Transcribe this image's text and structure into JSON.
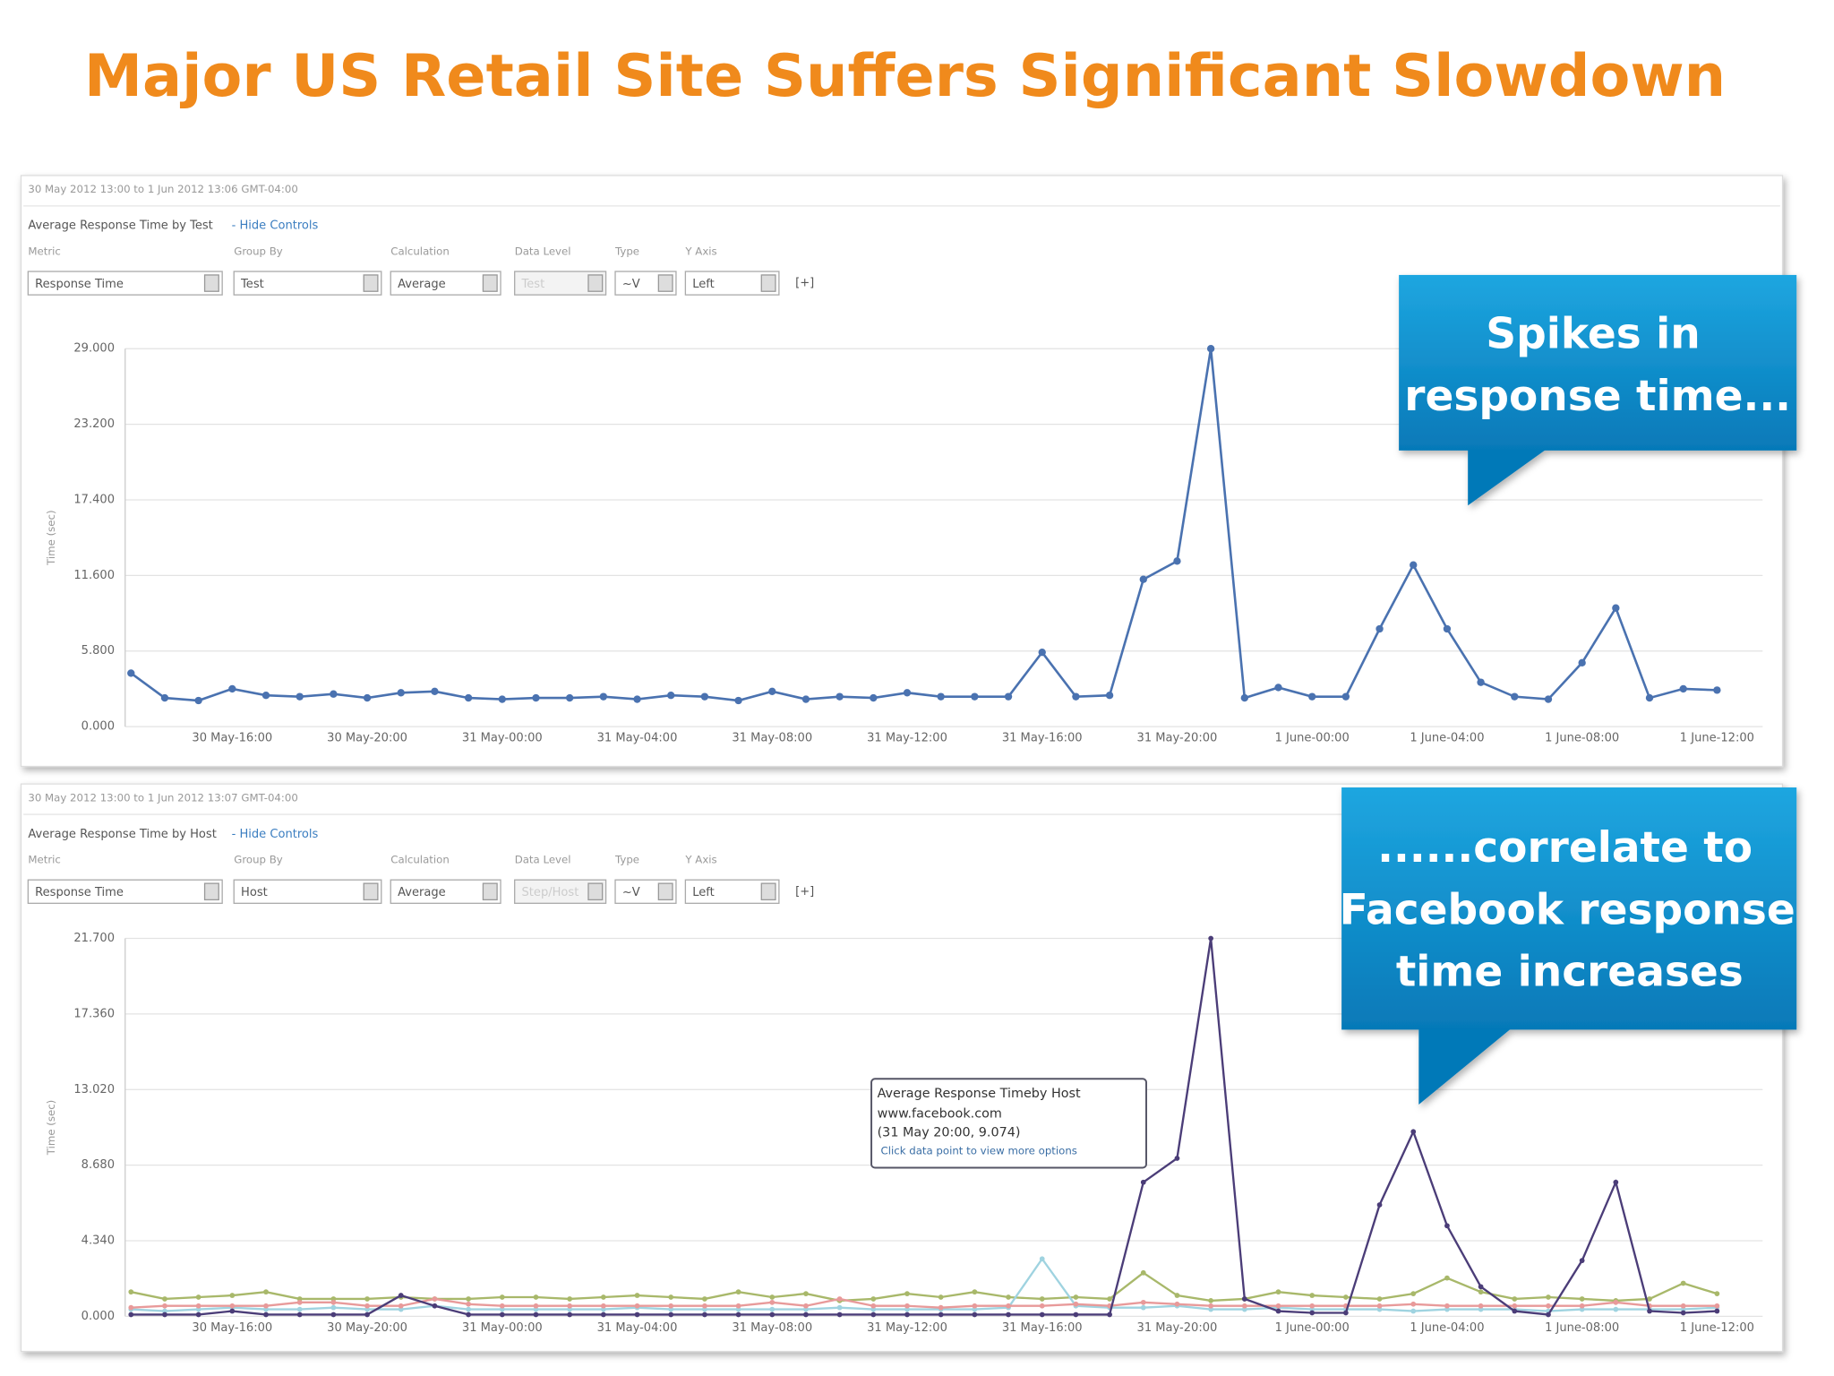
{
  "title": "Major US Retail Site Suffers Significant Slowdown",
  "panels": [
    {
      "header": "30 May 2012 13:00 to 1 Jun 2012 13:06 GMT-04:00",
      "heading": "Average Response Time by Test",
      "toggle": "- Hide Controls",
      "control_labels": [
        "Metric",
        "Group By",
        "Calculation",
        "Data Level",
        "Type",
        "Y Axis"
      ],
      "control_values": [
        "Response Time",
        "Test",
        "Average",
        "Test",
        "~V",
        "Left"
      ],
      "add": "[+]"
    },
    {
      "header": "30 May 2012 13:00 to 1 Jun 2012 13:07 GMT-04:00",
      "heading": "Average Response Time by Host",
      "toggle": "- Hide Controls",
      "control_labels": [
        "Metric",
        "Group By",
        "Calculation",
        "Data Level",
        "Type",
        "Y Axis"
      ],
      "control_values": [
        "Response Time",
        "Host",
        "Average",
        "Step/Host",
        "~V",
        "Left"
      ],
      "add": "[+]"
    }
  ],
  "callouts": [
    {
      "lines": [
        "Spikes in",
        "response time..."
      ]
    },
    {
      "lines": [
        "......correlate to",
        "Facebook response",
        "time increases"
      ]
    }
  ],
  "tooltip": {
    "lines": [
      "Average Response Timeby Host",
      "www.facebook.com",
      "(31 May 20:00, 9.074)",
      "Click data point to view more options"
    ]
  },
  "chart_data": [
    {
      "type": "line",
      "y_label": "Time (sec)",
      "categories": [
        null,
        null,
        null,
        "30 May-16:00",
        null,
        null,
        null,
        "30 May-20:00",
        null,
        null,
        null,
        "31 May-00:00",
        null,
        null,
        null,
        "31 May-04:00",
        null,
        null,
        null,
        "31 May-08:00",
        null,
        null,
        null,
        "31 May-12:00",
        null,
        null,
        null,
        "31 May-16:00",
        null,
        null,
        null,
        "31 May-20:00",
        null,
        null,
        null,
        "1 June-00:00",
        null,
        null,
        null,
        "1 June-04:00",
        null,
        null,
        null,
        "1 June-08:00",
        null,
        null,
        null,
        "1 June-12:00"
      ],
      "series": [
        {
          "color": "#4a72b0",
          "values": [
            4.1,
            2.2,
            2.0,
            2.9,
            2.4,
            2.3,
            2.5,
            2.2,
            2.6,
            2.7,
            2.2,
            2.1,
            2.2,
            2.2,
            2.3,
            2.1,
            2.4,
            2.3,
            2.0,
            2.7,
            2.1,
            2.3,
            2.2,
            2.6,
            2.3,
            2.3,
            2.3,
            5.7,
            2.3,
            2.4,
            11.3,
            12.7,
            29.0,
            2.2,
            3.0,
            2.3,
            2.3,
            7.5,
            12.4,
            7.5,
            3.4,
            2.3,
            2.1,
            4.9,
            9.1,
            2.2,
            2.9,
            2.8
          ]
        }
      ],
      "ylim": [
        0,
        29
      ],
      "yticks": [
        {
          "value": 0,
          "label": "0.000"
        },
        {
          "value": 5.8,
          "label": "5.800"
        },
        {
          "value": 11.6,
          "label": "11.600"
        },
        {
          "value": 17.4,
          "label": "17.400"
        },
        {
          "value": 23.2,
          "label": "23.200"
        },
        {
          "value": 29,
          "label": "29.000"
        }
      ],
      "grid": true
    },
    {
      "type": "line",
      "y_label": "Time (sec)",
      "categories": [
        null,
        null,
        null,
        "30 May-16:00",
        null,
        null,
        null,
        "30 May-20:00",
        null,
        null,
        null,
        "31 May-00:00",
        null,
        null,
        null,
        "31 May-04:00",
        null,
        null,
        null,
        "31 May-08:00",
        null,
        null,
        null,
        "31 May-12:00",
        null,
        null,
        null,
        "31 May-16:00",
        null,
        null,
        null,
        "31 May-20:00",
        null,
        null,
        null,
        "1 June-00:00",
        null,
        null,
        null,
        "1 June-04:00",
        null,
        null,
        null,
        "1 June-08:00",
        null,
        null,
        null,
        "1 June-12:00"
      ],
      "series": [
        {
          "color": "#a8b86a",
          "values": [
            1.4,
            1.0,
            1.1,
            1.2,
            1.4,
            1.0,
            1.0,
            1.0,
            1.1,
            1.0,
            1.0,
            1.1,
            1.1,
            1.0,
            1.1,
            1.2,
            1.1,
            1.0,
            1.4,
            1.1,
            1.3,
            0.9,
            1.0,
            1.3,
            1.1,
            1.4,
            1.1,
            1.0,
            1.1,
            1.0,
            2.5,
            1.2,
            0.9,
            1.0,
            1.4,
            1.2,
            1.1,
            1.0,
            1.3,
            2.2,
            1.4,
            1.0,
            1.1,
            1.0,
            0.9,
            1.0,
            1.9,
            1.3
          ]
        },
        {
          "color": "#9fd3e0",
          "values": [
            0.4,
            0.3,
            0.4,
            0.5,
            0.4,
            0.4,
            0.5,
            0.4,
            0.4,
            0.6,
            0.4,
            0.4,
            0.4,
            0.4,
            0.4,
            0.5,
            0.4,
            0.4,
            0.4,
            0.4,
            0.4,
            0.5,
            0.4,
            0.4,
            0.4,
            0.4,
            0.5,
            3.3,
            0.6,
            0.5,
            0.5,
            0.6,
            0.4,
            0.4,
            0.5,
            0.4,
            0.4,
            0.4,
            0.3,
            0.4,
            0.4,
            0.4,
            0.3,
            0.4,
            0.4,
            0.4,
            0.4,
            0.5
          ]
        },
        {
          "color": "#e89a9a",
          "values": [
            0.5,
            0.6,
            0.6,
            0.6,
            0.6,
            0.8,
            0.8,
            0.6,
            0.6,
            1.0,
            0.7,
            0.6,
            0.6,
            0.6,
            0.6,
            0.6,
            0.6,
            0.6,
            0.6,
            0.8,
            0.6,
            1.0,
            0.6,
            0.6,
            0.5,
            0.6,
            0.6,
            0.6,
            0.7,
            0.6,
            0.8,
            0.7,
            0.6,
            0.6,
            0.6,
            0.6,
            0.6,
            0.6,
            0.7,
            0.6,
            0.6,
            0.6,
            0.6,
            0.6,
            0.8,
            0.6,
            0.6,
            0.6
          ]
        },
        {
          "color": "#4b3d78",
          "values": [
            0.1,
            0.1,
            0.1,
            0.3,
            0.1,
            0.1,
            0.1,
            0.1,
            1.2,
            0.6,
            0.1,
            0.1,
            0.1,
            0.1,
            0.1,
            0.1,
            0.1,
            0.1,
            0.1,
            0.1,
            0.1,
            0.1,
            0.1,
            0.1,
            0.1,
            0.1,
            0.1,
            0.1,
            0.1,
            0.1,
            7.7,
            9.074,
            21.7,
            1.0,
            0.3,
            0.2,
            0.2,
            6.4,
            10.6,
            5.2,
            1.7,
            0.3,
            0.1,
            3.2,
            7.7,
            0.3,
            0.2,
            0.3
          ]
        }
      ],
      "ylim": [
        0,
        21.7
      ],
      "yticks": [
        {
          "value": 0,
          "label": "0.000"
        },
        {
          "value": 4.34,
          "label": "4.340"
        },
        {
          "value": 8.68,
          "label": "8.680"
        },
        {
          "value": 13.02,
          "label": "13.020"
        },
        {
          "value": 17.36,
          "label": "17.360"
        },
        {
          "value": 21.7,
          "label": "21.700"
        }
      ],
      "grid": true
    }
  ]
}
